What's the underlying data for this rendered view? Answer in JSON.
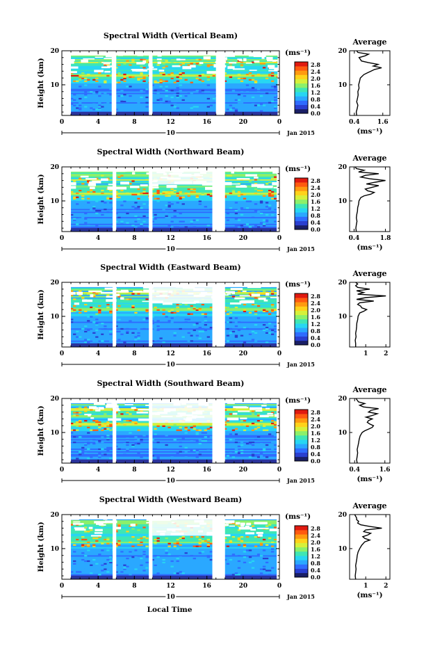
{
  "page": {
    "xlabel": "Local Time",
    "colors": {
      "colormap": [
        "#1a1f66",
        "#2a3fd0",
        "#2f6cff",
        "#2aa8ff",
        "#27d6f2",
        "#3fe6b4",
        "#8cf06a",
        "#d7f03a",
        "#ffd21a",
        "#ff9a10",
        "#ff5a10",
        "#e01a10"
      ],
      "low_fill": "#2b2f86",
      "profile_line": "#000000"
    }
  },
  "chart_data": [
    {
      "type": "heatmap",
      "title": "Spectral Width (Vertical Beam)",
      "xlabel": "Local Time",
      "ylabel": "Height (km)",
      "xticks": [
        "0",
        "4",
        "8",
        "12",
        "16",
        "20",
        "0"
      ],
      "xlim": [
        0,
        24
      ],
      "yticks": [
        "10",
        "20"
      ],
      "ylim": [
        1,
        20
      ],
      "date_label": "10",
      "date_suffix": "Jan 2015",
      "colorbar": {
        "unit": "(ms⁻¹)",
        "ticks": [
          "2.8",
          "2.4",
          "2.0",
          "1.6",
          "1.2",
          "0.8",
          "0.4",
          "0.0"
        ],
        "range": [
          0.0,
          3.0
        ]
      },
      "data_gaps_hours": [
        [
          0,
          1
        ],
        [
          5.5,
          6
        ],
        [
          9.6,
          10
        ],
        [
          17.0,
          18
        ],
        [
          23.8,
          24
        ]
      ],
      "gap_top_height_km": null,
      "average_profile": {
        "title": "Average",
        "xlabel": "(ms⁻¹)",
        "xticks": [
          "0.4",
          "1.6"
        ],
        "xtick_values": [
          0.4,
          1.6
        ],
        "xlim": [
          0.2,
          1.9
        ],
        "yticks": [
          "10",
          "20"
        ],
        "ylim": [
          1,
          20
        ],
        "height_km": [
          1.0,
          2.0,
          3.0,
          4.0,
          5.0,
          6.0,
          7.0,
          8.0,
          9.0,
          10.0,
          11.0,
          12.0,
          13.0,
          13.5,
          14.0,
          14.5,
          15.0,
          15.5,
          16.0,
          16.5,
          17.0,
          17.5,
          18.0,
          18.5,
          19.0,
          19.5,
          20.0
        ],
        "values": [
          0.5,
          0.48,
          0.52,
          0.55,
          0.5,
          0.53,
          0.56,
          0.55,
          0.6,
          0.58,
          0.62,
          0.65,
          0.8,
          0.95,
          1.1,
          1.25,
          1.55,
          1.2,
          1.4,
          1.0,
          0.7,
          0.65,
          0.6,
          0.85,
          1.0,
          0.55,
          0.5
        ]
      }
    },
    {
      "type": "heatmap",
      "title": "Spectral Width (Northward Beam)",
      "xlabel": "Local Time",
      "ylabel": "Height (km)",
      "xticks": [
        "0",
        "4",
        "8",
        "12",
        "16",
        "20",
        "0"
      ],
      "xlim": [
        0,
        24
      ],
      "yticks": [
        "10",
        "20"
      ],
      "ylim": [
        1,
        20
      ],
      "date_label": "10",
      "date_suffix": "Jan 2015",
      "colorbar": {
        "unit": "(ms⁻¹)",
        "ticks": [
          "2.8",
          "2.4",
          "2.0",
          "1.6",
          "1.2",
          "0.8",
          "0.4",
          "0.0"
        ],
        "range": [
          0.0,
          3.0
        ]
      },
      "data_gaps_hours": [
        [
          0,
          1
        ],
        [
          5.6,
          6
        ],
        [
          9.6,
          10
        ],
        [
          16.6,
          18
        ],
        [
          23.7,
          24
        ]
      ],
      "gap_top_height_km": 13,
      "average_profile": {
        "title": "Average",
        "xlabel": "(ms⁻¹)",
        "xticks": [
          "0.4",
          "1.8"
        ],
        "xtick_values": [
          0.4,
          1.8
        ],
        "xlim": [
          0.2,
          2.0
        ],
        "yticks": [
          "10",
          "20"
        ],
        "ylim": [
          1,
          20
        ],
        "height_km": [
          1.0,
          2.0,
          3.0,
          4.0,
          5.0,
          6.0,
          7.0,
          8.0,
          9.0,
          10.0,
          11.0,
          11.5,
          12.0,
          12.5,
          13.0,
          13.5,
          14.0,
          14.5,
          15.0,
          15.5,
          16.0,
          16.5,
          17.0,
          17.5,
          18.0,
          18.5,
          19.0,
          19.5,
          20.0
        ],
        "values": [
          0.5,
          0.48,
          0.5,
          0.53,
          0.5,
          0.52,
          0.55,
          0.56,
          0.6,
          0.62,
          0.7,
          0.85,
          1.15,
          1.3,
          1.0,
          0.9,
          1.2,
          1.5,
          0.95,
          1.35,
          1.8,
          1.1,
          0.7,
          0.9,
          1.5,
          0.6,
          0.85,
          0.5,
          0.45
        ]
      }
    },
    {
      "type": "heatmap",
      "title": "Spectral Width (Eastward Beam)",
      "xlabel": "Local Time",
      "ylabel": "Height (km)",
      "xticks": [
        "0",
        "4",
        "8",
        "12",
        "16",
        "20",
        "0"
      ],
      "xlim": [
        0,
        24
      ],
      "yticks": [
        "10",
        "20"
      ],
      "ylim": [
        1,
        20
      ],
      "date_label": "10",
      "date_suffix": "Jan 2015",
      "colorbar": {
        "unit": "(ms⁻¹)",
        "ticks": [
          "2.8",
          "2.4",
          "2.0",
          "1.6",
          "1.2",
          "0.8",
          "0.4",
          "0.0"
        ],
        "range": [
          0.0,
          3.0
        ]
      },
      "data_gaps_hours": [
        [
          0,
          1
        ],
        [
          5.6,
          6
        ],
        [
          9.6,
          10
        ],
        [
          16.6,
          18
        ],
        [
          23.7,
          24
        ]
      ],
      "gap_top_height_km": 12,
      "average_profile": {
        "title": "Average",
        "xlabel": "",
        "xticks": [
          "1",
          "2"
        ],
        "xtick_values": [
          1,
          2
        ],
        "xlim": [
          0.2,
          2.2
        ],
        "yticks": [
          "10",
          "20"
        ],
        "ylim": [
          1,
          20
        ],
        "height_km": [
          1.0,
          2.0,
          3.0,
          4.0,
          5.0,
          6.0,
          7.0,
          8.0,
          9.0,
          10.0,
          11.0,
          11.5,
          12.0,
          12.5,
          13.0,
          13.5,
          14.0,
          14.5,
          15.0,
          15.5,
          16.0,
          16.5,
          17.0,
          17.5,
          18.0,
          18.5,
          19.0,
          19.5,
          20.0
        ],
        "values": [
          0.5,
          0.5,
          0.48,
          0.52,
          0.5,
          0.53,
          0.55,
          0.56,
          0.6,
          0.62,
          0.7,
          0.9,
          1.05,
          0.8,
          0.75,
          0.6,
          0.7,
          1.4,
          0.55,
          1.0,
          2.0,
          0.6,
          0.9,
          0.55,
          1.2,
          0.6,
          0.5,
          0.6,
          0.5
        ]
      }
    },
    {
      "type": "heatmap",
      "title": "Spectral Width (Southward Beam)",
      "xlabel": "Local Time",
      "ylabel": "Height (km)",
      "xticks": [
        "0",
        "4",
        "8",
        "12",
        "16",
        "20",
        "0"
      ],
      "xlim": [
        0,
        24
      ],
      "yticks": [
        "10",
        "20"
      ],
      "ylim": [
        1,
        20
      ],
      "date_label": "10",
      "date_suffix": "Jan 2015",
      "colorbar": {
        "unit": "(ms⁻¹)",
        "ticks": [
          "2.8",
          "2.4",
          "2.0",
          "1.6",
          "1.2",
          "0.8",
          "0.4",
          "0.0"
        ],
        "range": [
          0.0,
          3.0
        ]
      },
      "data_gaps_hours": [
        [
          0,
          1
        ],
        [
          5.6,
          6
        ],
        [
          9.6,
          10
        ],
        [
          16.6,
          18
        ],
        [
          23.7,
          24
        ]
      ],
      "gap_top_height_km": 11,
      "average_profile": {
        "title": "Average",
        "xlabel": "(ms⁻¹)",
        "xticks": [
          "0.4",
          "1.6"
        ],
        "xtick_values": [
          0.4,
          1.6
        ],
        "xlim": [
          0.2,
          1.8
        ],
        "yticks": [
          "10",
          "20"
        ],
        "ylim": [
          1,
          20
        ],
        "height_km": [
          1.0,
          2.0,
          3.0,
          4.0,
          5.0,
          6.0,
          7.0,
          8.0,
          9.0,
          10.0,
          10.5,
          11.0,
          11.5,
          12.0,
          12.5,
          13.0,
          13.5,
          14.0,
          14.5,
          15.0,
          15.5,
          16.0,
          16.5,
          17.0,
          17.5,
          18.0,
          18.5,
          19.0,
          19.5,
          20.0
        ],
        "values": [
          0.5,
          0.48,
          0.5,
          0.52,
          0.5,
          0.53,
          0.56,
          0.58,
          0.62,
          0.7,
          0.8,
          0.95,
          1.1,
          1.15,
          1.0,
          0.9,
          0.95,
          1.1,
          0.85,
          1.1,
          1.3,
          0.95,
          1.05,
          1.35,
          0.75,
          0.6,
          0.8,
          0.55,
          0.5,
          0.45
        ]
      }
    },
    {
      "type": "heatmap",
      "title": "Spectral Width (Westward Beam)",
      "xlabel": "Local Time",
      "ylabel": "Height (km)",
      "xticks": [
        "0",
        "4",
        "8",
        "12",
        "16",
        "20",
        "0"
      ],
      "xlim": [
        0,
        24
      ],
      "yticks": [
        "10",
        "20"
      ],
      "ylim": [
        1,
        20
      ],
      "date_label": "10",
      "date_suffix": "Jan 2015",
      "colorbar": {
        "unit": "(ms⁻¹)",
        "ticks": [
          "2.8",
          "2.4",
          "2.0",
          "1.6",
          "1.2",
          "0.8",
          "0.4",
          "0.0"
        ],
        "range": [
          0.0,
          3.0
        ]
      },
      "data_gaps_hours": [
        [
          0,
          1
        ],
        [
          5.6,
          6
        ],
        [
          9.6,
          10
        ],
        [
          16.6,
          18
        ],
        [
          23.7,
          24
        ]
      ],
      "gap_top_height_km": 12,
      "average_profile": {
        "title": "Average",
        "xlabel": "(ms⁻¹)",
        "xticks": [
          "1",
          "2"
        ],
        "xtick_values": [
          1,
          2
        ],
        "xlim": [
          0.2,
          2.2
        ],
        "yticks": [
          "10",
          "20"
        ],
        "ylim": [
          1,
          20
        ],
        "height_km": [
          1.0,
          2.0,
          3.0,
          4.0,
          5.0,
          6.0,
          7.0,
          8.0,
          9.0,
          10.0,
          11.0,
          12.0,
          12.5,
          13.0,
          13.5,
          14.0,
          14.5,
          15.0,
          15.5,
          16.0,
          16.5,
          17.0,
          17.5,
          18.0,
          18.5,
          19.0,
          19.5,
          20.0
        ],
        "values": [
          0.5,
          0.48,
          0.5,
          0.52,
          0.5,
          0.53,
          0.56,
          0.58,
          0.62,
          0.7,
          0.8,
          0.95,
          1.2,
          0.95,
          0.85,
          1.1,
          1.25,
          0.9,
          1.0,
          1.8,
          1.2,
          0.75,
          0.6,
          0.65,
          0.55,
          0.55,
          0.5,
          0.45
        ]
      }
    }
  ]
}
